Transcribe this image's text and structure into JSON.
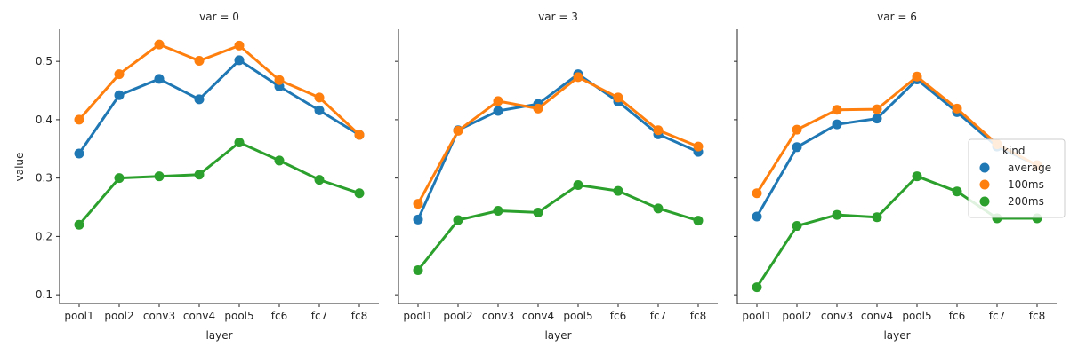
{
  "chart_data": {
    "type": "line",
    "facet_label": "var",
    "panels": [
      {
        "title": "var = 0",
        "var": 0
      },
      {
        "title": "var = 3",
        "var": 3
      },
      {
        "title": "var = 6",
        "var": 6
      }
    ],
    "categories": [
      "pool1",
      "pool2",
      "conv3",
      "conv4",
      "pool5",
      "fc6",
      "fc7",
      "fc8"
    ],
    "xlabel": "layer",
    "ylabel": "value",
    "ylim": [
      0.085,
      0.555
    ],
    "yticks": [
      0.1,
      0.2,
      0.3,
      0.4,
      0.5
    ],
    "ytick_labels": [
      "0.1",
      "0.2",
      "0.3",
      "0.4",
      "0.5"
    ],
    "legend": {
      "title": "kind",
      "position": "right"
    },
    "grid": false,
    "series": [
      {
        "name": "average",
        "color": "#1f77b4",
        "values": [
          [
            0.342,
            0.442,
            0.47,
            0.435,
            0.502,
            0.457,
            0.416,
            0.374
          ],
          [
            0.229,
            0.382,
            0.415,
            0.427,
            0.478,
            0.431,
            0.375,
            0.345
          ],
          [
            0.234,
            0.353,
            0.392,
            0.402,
            0.469,
            0.413,
            0.354,
            0.322
          ]
        ]
      },
      {
        "name": "100ms",
        "color": "#ff7f0e",
        "values": [
          [
            0.4,
            0.478,
            0.529,
            0.501,
            0.527,
            0.468,
            0.438,
            0.374
          ],
          [
            0.256,
            0.381,
            0.432,
            0.419,
            0.473,
            0.438,
            0.382,
            0.354
          ],
          [
            0.274,
            0.383,
            0.417,
            0.418,
            0.474,
            0.419,
            0.358,
            0.322
          ]
        ]
      },
      {
        "name": "200ms",
        "color": "#2ca02c",
        "values": [
          [
            0.22,
            0.3,
            0.303,
            0.306,
            0.361,
            0.33,
            0.297,
            0.274
          ],
          [
            0.142,
            0.228,
            0.244,
            0.241,
            0.288,
            0.278,
            0.248,
            0.227
          ],
          [
            0.113,
            0.218,
            0.237,
            0.233,
            0.303,
            0.277,
            0.231,
            0.231
          ]
        ]
      }
    ]
  }
}
